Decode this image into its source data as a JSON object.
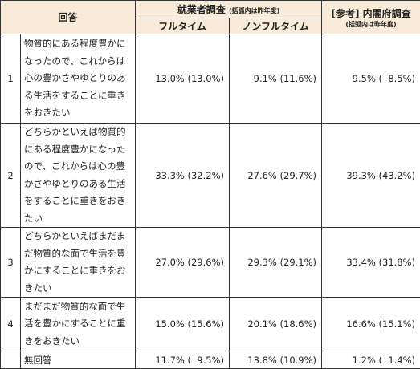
{
  "header": {
    "answer": "回答",
    "survey": "就業者調査",
    "survey_note": "(括弧内は昨年度)",
    "reference": "[参考] 内閣府調査",
    "reference_note": "(括弧内は昨年度)",
    "full_time": "フルタイム",
    "non_full_time": "ノンフルタイム"
  },
  "rows": [
    {
      "number": 1,
      "answer": "物質的にある程度豊かになったので、これからは心の豊かさやゆとりのある生活をすることに重きをおきたい",
      "full_time": "13.0% (13.0%)",
      "non_full_time": "9.1% (11.6%)",
      "reference": "9.5% (  8.5%)"
    },
    {
      "number": 2,
      "answer": "どちらかといえば物質的にある程度豊かになったので、これからは心の豊かさやゆとりのある生活をすることに重きをおきたい",
      "full_time": "33.3% (32.2%)",
      "non_full_time": "27.6% (29.7%)",
      "reference": "39.3% (43.2%)"
    },
    {
      "number": 3,
      "answer": "どちらかといえばまだまだ物質的な面で生活を豊かにすることに重きをおきたい",
      "full_time": "27.0% (29.6%)",
      "non_full_time": "29.3% (29.1%)",
      "reference": "33.4% (31.8%)"
    },
    {
      "number": 4,
      "answer": "まだまだ物質的な面で生活を豊かにすることに重きをおきたい",
      "full_time": "15.0% (15.6%)",
      "non_full_time": "20.1% (18.6%)",
      "reference": "16.6% (15.1%)"
    },
    {
      "answer": "無回答",
      "full_time": "11.7% (  9.5%)",
      "non_full_time": "13.8% (10.9%)",
      "reference": "1.2% (  1.4%)"
    }
  ]
}
